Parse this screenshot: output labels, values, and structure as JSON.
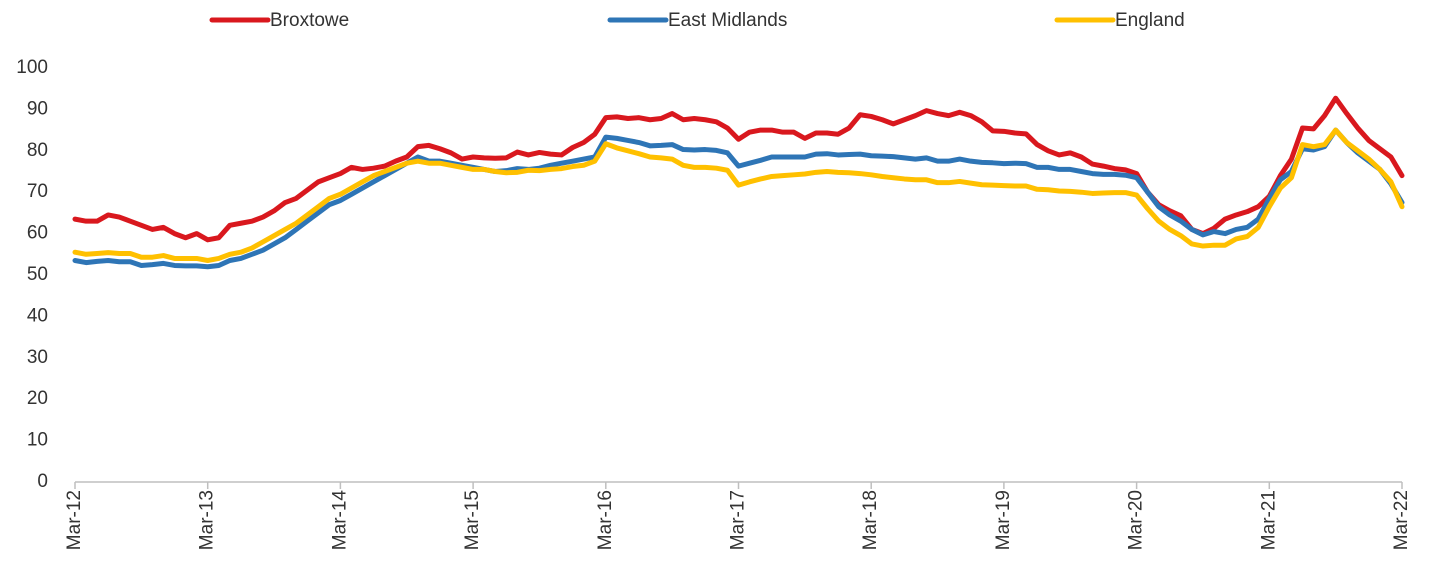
{
  "chart_data": {
    "type": "line",
    "categories": [
      "Mar-12",
      null,
      null,
      null,
      null,
      null,
      null,
      null,
      null,
      null,
      null,
      null,
      "Mar-13",
      null,
      null,
      null,
      null,
      null,
      null,
      null,
      null,
      null,
      null,
      null,
      "Mar-14",
      null,
      null,
      null,
      null,
      null,
      null,
      null,
      null,
      null,
      null,
      null,
      "Mar-15",
      null,
      null,
      null,
      null,
      null,
      null,
      null,
      null,
      null,
      null,
      null,
      "Mar-16",
      null,
      null,
      null,
      null,
      null,
      null,
      null,
      null,
      null,
      null,
      null,
      "Mar-17",
      null,
      null,
      null,
      null,
      null,
      null,
      null,
      null,
      null,
      null,
      null,
      "Mar-18",
      null,
      null,
      null,
      null,
      null,
      null,
      null,
      null,
      null,
      null,
      null,
      "Mar-19",
      null,
      null,
      null,
      null,
      null,
      null,
      null,
      null,
      null,
      null,
      null,
      "Mar-20",
      null,
      null,
      null,
      null,
      null,
      null,
      null,
      null,
      null,
      null,
      null,
      "Mar-21",
      null,
      null,
      null,
      null,
      null,
      null,
      null,
      null,
      null,
      null,
      null,
      "Mar-22"
    ],
    "series": [
      {
        "name": "Broxtowe",
        "color": "#d9181e",
        "values": [
          63.5,
          63,
          63,
          64.5,
          64,
          63,
          62,
          61,
          61.5,
          60,
          59,
          60,
          58.5,
          59,
          62,
          62.5,
          63,
          64,
          65.5,
          67.5,
          68.5,
          70.5,
          72.5,
          73.5,
          74.5,
          76,
          75.5,
          75.8,
          76.3,
          77.5,
          78.5,
          81,
          81.3,
          80.5,
          79.5,
          78,
          78.5,
          78.3,
          78.2,
          78.3,
          79.7,
          79,
          79.6,
          79.2,
          79,
          80.8,
          82,
          84,
          88,
          88.2,
          87.8,
          88,
          87.5,
          87.8,
          89,
          87.5,
          87.8,
          87.5,
          87,
          85.5,
          82.8,
          84.5,
          85,
          85,
          84.5,
          84.5,
          83,
          84.3,
          84.3,
          84,
          85.5,
          88.7,
          88.3,
          87.5,
          86.5,
          87.5,
          88.5,
          89.7,
          89,
          88.5,
          89.3,
          88.5,
          87,
          84.8,
          84.7,
          84.3,
          84.1,
          81.5,
          80,
          79,
          79.5,
          78.5,
          76.8,
          76.3,
          75.7,
          75.4,
          74.5,
          70,
          67,
          65.5,
          64.3,
          61,
          60,
          61.3,
          63.5,
          64.5,
          65.3,
          66.5,
          69,
          74,
          78,
          85.5,
          85.3,
          88.5,
          92.7,
          89,
          85.5,
          82.5,
          80.5,
          78.5,
          74
        ]
      },
      {
        "name": "East Midlands",
        "color": "#2e75b6",
        "values": [
          53.5,
          53,
          53.3,
          53.5,
          53.2,
          53.2,
          52.3,
          52.5,
          52.8,
          52.3,
          52.2,
          52.2,
          52,
          52.3,
          53.5,
          54,
          55,
          56,
          57.5,
          59,
          61,
          63,
          65,
          67,
          68,
          69.5,
          71,
          72.5,
          74,
          75.5,
          77,
          78.5,
          77.5,
          77.5,
          77,
          76.5,
          76,
          75.5,
          75,
          75.2,
          75.7,
          75.5,
          75.8,
          76.5,
          77,
          77.5,
          78,
          78.5,
          83.3,
          83,
          82.5,
          82,
          81.2,
          81.3,
          81.5,
          80.3,
          80.2,
          80.3,
          80.1,
          79.5,
          76.3,
          77,
          77.7,
          78.5,
          78.5,
          78.5,
          78.5,
          79.2,
          79.3,
          79,
          79.1,
          79.2,
          78.8,
          78.7,
          78.6,
          78.3,
          78,
          78.3,
          77.5,
          77.5,
          78,
          77.5,
          77.2,
          77.1,
          76.9,
          77,
          76.9,
          76,
          76,
          75.5,
          75.5,
          75,
          74.5,
          74.3,
          74.3,
          74.1,
          73.5,
          70,
          66.5,
          64.5,
          63,
          61,
          59.7,
          60.5,
          60,
          61,
          61.5,
          63.5,
          68.5,
          73,
          75,
          80.5,
          80.2,
          81,
          85,
          82,
          79.5,
          77.5,
          75.5,
          72,
          67.5
        ]
      },
      {
        "name": "England",
        "color": "#ffc000",
        "values": [
          55.5,
          55,
          55.2,
          55.4,
          55.2,
          55.2,
          54.3,
          54.3,
          54.7,
          54,
          54,
          54,
          53.5,
          54,
          55,
          55.5,
          56.5,
          58,
          59.5,
          61,
          62.5,
          64.5,
          66.5,
          68.5,
          69.5,
          71,
          72.5,
          74,
          75,
          76,
          77,
          77.5,
          77,
          77,
          76.5,
          76,
          75.5,
          75.5,
          75,
          74.7,
          74.8,
          75.3,
          75.2,
          75.5,
          75.7,
          76.2,
          76.5,
          77.5,
          81.7,
          80.7,
          80,
          79.3,
          78.5,
          78.3,
          78,
          76.5,
          76,
          76,
          75.8,
          75.3,
          71.7,
          72.5,
          73.2,
          73.8,
          74,
          74.2,
          74.4,
          74.8,
          75,
          74.8,
          74.7,
          74.5,
          74.2,
          73.8,
          73.5,
          73.2,
          73,
          73,
          72.3,
          72.3,
          72.6,
          72.2,
          71.8,
          71.7,
          71.6,
          71.5,
          71.5,
          70.7,
          70.6,
          70.3,
          70.2,
          70,
          69.7,
          69.8,
          69.9,
          69.9,
          69.3,
          66,
          63,
          61,
          59.5,
          57.5,
          57,
          57.2,
          57.2,
          58.7,
          59.3,
          61.5,
          66.5,
          71,
          73.5,
          81.5,
          81,
          81.5,
          85,
          82,
          80,
          78,
          75.5,
          72.5,
          66.5
        ]
      }
    ],
    "ylim": [
      0,
      100
    ],
    "yticks": [
      0,
      10,
      20,
      30,
      40,
      50,
      60,
      70,
      80,
      90,
      100
    ],
    "grid": false,
    "legend": "top"
  }
}
